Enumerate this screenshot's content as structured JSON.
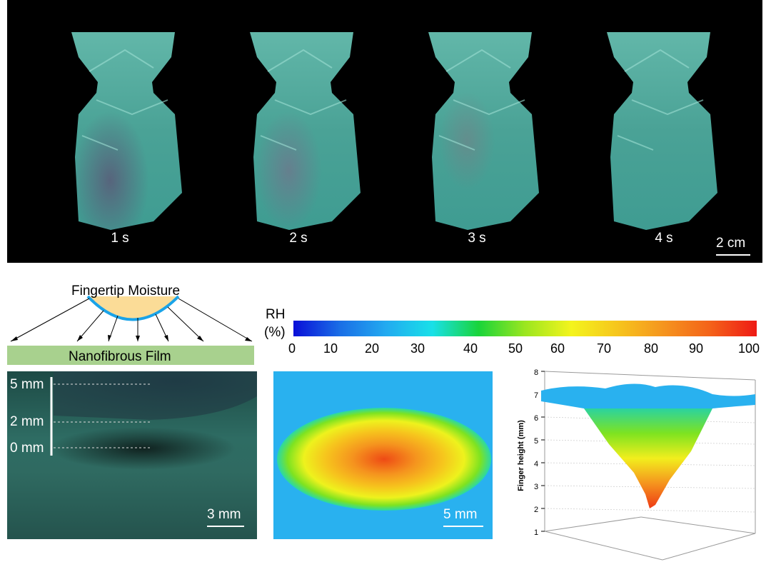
{
  "top_panel": {
    "time_labels": [
      "1 s",
      "2 s",
      "3 s",
      "4 s"
    ],
    "scale": "2 cm"
  },
  "schematic": {
    "moisture_label": "Fingertip Moisture",
    "film_label": "Nanofibrous Film",
    "colors": {
      "finger": "#fbdc97",
      "finger_edge": "#1aa3e8",
      "film": "#a8d18e"
    }
  },
  "camera_panel": {
    "marks": [
      "5 mm",
      "2 mm",
      "0 mm"
    ],
    "scale": "3 mm"
  },
  "rh_map": {
    "scale": "5 mm"
  },
  "colorbar": {
    "label_line1": "RH",
    "label_line2": "(%)",
    "ticks": [
      "0",
      "10",
      "20",
      "30",
      "40",
      "50",
      "60",
      "70",
      "80",
      "90",
      "100"
    ]
  },
  "plot3d": {
    "ylabel": "Finger height (mm)",
    "ticks": [
      "1",
      "2",
      "3",
      "4",
      "5",
      "6",
      "7",
      "8"
    ]
  }
}
